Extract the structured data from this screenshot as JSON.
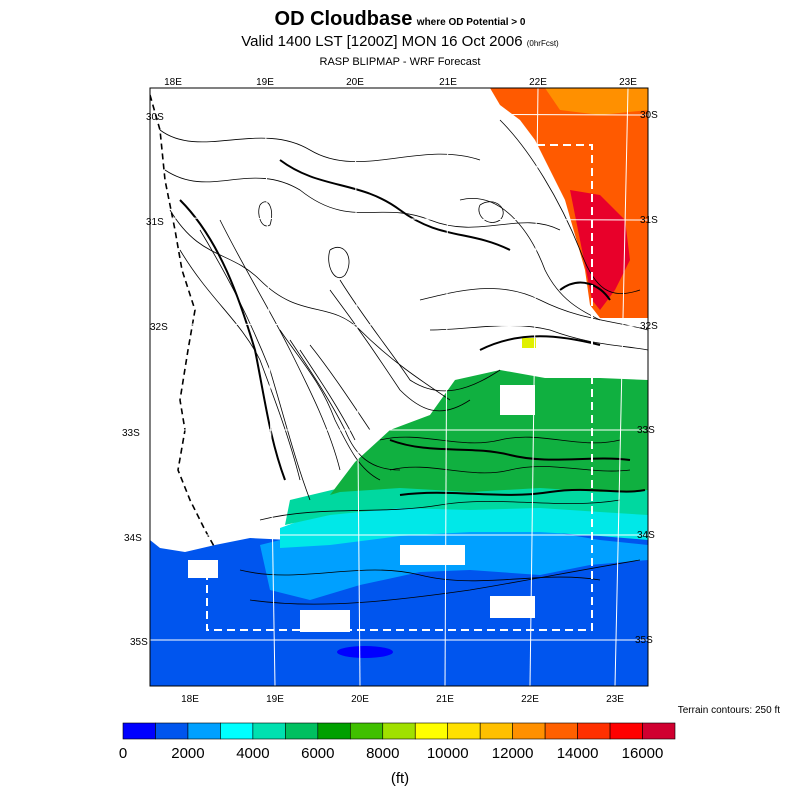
{
  "header": {
    "title": "OD Cloudbase",
    "title_qualifier": "where OD Potential > 0",
    "valid_line": "Valid 1400 LST [1200Z] MON 16 Oct 2006",
    "valid_suffix": "(0hrFcst)",
    "subtitle": "RASP BLIPMAP - WRF Forecast"
  },
  "map": {
    "top_lon_labels": [
      "18E",
      "19E",
      "20E",
      "21E",
      "22E",
      "23E"
    ],
    "bottom_lon_labels": [
      "18E",
      "19E",
      "20E",
      "21E",
      "22E",
      "23E"
    ],
    "left_lat_labels": [
      "30S",
      "31S",
      "32S",
      "33S",
      "34S",
      "35S"
    ],
    "right_lat_labels": [
      "30S",
      "31S",
      "32S",
      "33S",
      "34S",
      "35S"
    ],
    "terrain_note": "Terrain contours: 250 ft"
  },
  "colorbar": {
    "colors": [
      "#0000ff",
      "#0055ee",
      "#00a0ff",
      "#00ffff",
      "#00e0b0",
      "#00c060",
      "#00a000",
      "#40c000",
      "#a0e000",
      "#ffff00",
      "#ffe000",
      "#ffc000",
      "#ff9000",
      "#ff6000",
      "#ff3000",
      "#ff0000",
      "#d00030"
    ],
    "tick_labels": [
      "0",
      "2000",
      "4000",
      "6000",
      "8000",
      "10000",
      "12000",
      "14000",
      "16000"
    ],
    "units": "(ft)"
  }
}
